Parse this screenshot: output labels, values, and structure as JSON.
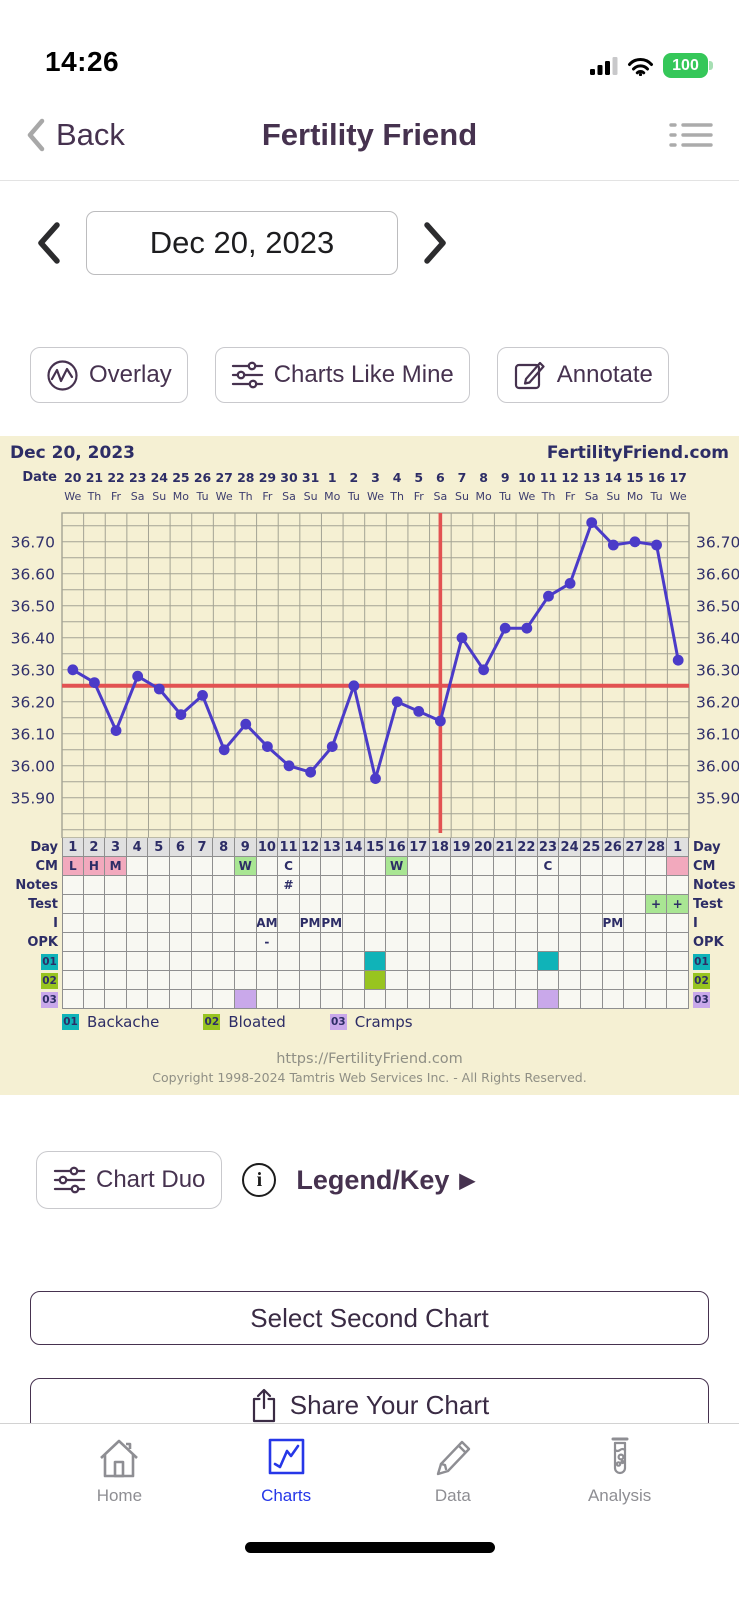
{
  "status_bar": {
    "time": "14:26",
    "battery_percent": "100"
  },
  "nav": {
    "back_label": "Back",
    "title": "Fertility Friend"
  },
  "date_nav": {
    "current_date": "Dec 20, 2023"
  },
  "actions": {
    "overlay": "Overlay",
    "charts_like_mine": "Charts Like Mine",
    "annotate": "Annotate"
  },
  "chart": {
    "header_left": "Dec 20, 2023",
    "header_right": "FertilityFriend.com",
    "date_label": "Date",
    "footer_url": "https://FertilityFriend.com",
    "footer_copyright": "Copyright 1998-2024 Tamtris Web Services Inc. - All Rights Reserved.",
    "colors": {
      "navy": "#2d2d66",
      "grid": "#a3a394",
      "cell_border": "#8f8f8f",
      "plot_bg": "#f5f0d3",
      "cell_bg": "#f8f8f2",
      "day_header_bg": "#e0e0e0",
      "red": "#e25252",
      "line": "#4b3bc8",
      "pink": "#f2a9bd",
      "green": "#a9e693",
      "teal": "#10b3b8",
      "ygreen": "#98c420",
      "lilac": "#c9a8ea"
    }
  },
  "chart_data": {
    "type": "line",
    "title": "Dec 20, 2023",
    "source_label": "FertilityFriend.com",
    "x_dates": [
      "20",
      "21",
      "22",
      "23",
      "24",
      "25",
      "26",
      "27",
      "28",
      "29",
      "30",
      "31",
      "1",
      "2",
      "3",
      "4",
      "5",
      "6",
      "7",
      "8",
      "9",
      "10",
      "11",
      "12",
      "13",
      "14",
      "15",
      "16",
      "17"
    ],
    "x_dow": [
      "We",
      "Th",
      "Fr",
      "Sa",
      "Su",
      "Mo",
      "Tu",
      "We",
      "Th",
      "Fr",
      "Sa",
      "Su",
      "Mo",
      "Tu",
      "We",
      "Th",
      "Fr",
      "Sa",
      "Su",
      "Mo",
      "Tu",
      "We",
      "Th",
      "Fr",
      "Sa",
      "Su",
      "Mo",
      "Tu",
      "We"
    ],
    "cycle_days": [
      "1",
      "2",
      "3",
      "4",
      "5",
      "6",
      "7",
      "8",
      "9",
      "10",
      "11",
      "12",
      "13",
      "14",
      "15",
      "16",
      "17",
      "18",
      "19",
      "20",
      "21",
      "22",
      "23",
      "24",
      "25",
      "26",
      "27",
      "28",
      "1"
    ],
    "temps_c": [
      36.3,
      36.26,
      36.11,
      36.28,
      36.24,
      36.16,
      36.22,
      36.05,
      36.13,
      36.06,
      36.0,
      35.98,
      36.06,
      36.25,
      35.96,
      36.2,
      36.17,
      36.14,
      36.4,
      36.3,
      36.43,
      36.43,
      36.53,
      36.57,
      36.76,
      36.69,
      36.7,
      36.69,
      36.33
    ],
    "yticks": [
      36.7,
      36.6,
      36.5,
      36.4,
      36.3,
      36.2,
      36.1,
      36.0,
      35.9
    ],
    "ylim": [
      35.84,
      36.79
    ],
    "coverline_temp": 36.25,
    "ovulation_line_day": 18,
    "grid": true,
    "rows": [
      {
        "label": "CM",
        "entries": [
          {
            "day": 1,
            "text": "L",
            "bg": "pink"
          },
          {
            "day": 2,
            "text": "H",
            "bg": "pink"
          },
          {
            "day": 3,
            "text": "M",
            "bg": "pink"
          },
          {
            "day": 9,
            "text": "W",
            "bg": "green"
          },
          {
            "day": 11,
            "text": "C"
          },
          {
            "day": 16,
            "text": "W",
            "bg": "green"
          },
          {
            "day": 23,
            "text": "C"
          },
          {
            "day": 29,
            "text": "",
            "bg": "pink"
          }
        ]
      },
      {
        "label": "Notes",
        "entries": [
          {
            "day": 11,
            "text": "#"
          }
        ]
      },
      {
        "label": "Test",
        "entries": [
          {
            "day": 28,
            "text": "+",
            "bg": "green"
          },
          {
            "day": 29,
            "text": "+",
            "bg": "green"
          }
        ]
      },
      {
        "label": "I",
        "entries": [
          {
            "day": 10,
            "text": "AM"
          },
          {
            "day": 12,
            "text": "PM"
          },
          {
            "day": 13,
            "text": "PM"
          },
          {
            "day": 26,
            "text": "PM"
          }
        ]
      },
      {
        "label": "OPK",
        "entries": [
          {
            "day": 10,
            "text": "-"
          }
        ]
      },
      {
        "label": "01",
        "chip": "teal",
        "entries": [
          {
            "day": 15,
            "bg": "teal"
          },
          {
            "day": 23,
            "bg": "teal"
          }
        ]
      },
      {
        "label": "02",
        "chip": "ygreen",
        "entries": [
          {
            "day": 15,
            "bg": "ygreen"
          }
        ]
      },
      {
        "label": "03",
        "chip": "lilac",
        "entries": [
          {
            "day": 9,
            "bg": "lilac"
          },
          {
            "day": 23,
            "bg": "lilac"
          }
        ]
      }
    ],
    "day_row_label": "Day",
    "legend": [
      {
        "code": "01",
        "label": "Backache",
        "color": "teal"
      },
      {
        "code": "02",
        "label": "Bloated",
        "color": "ygreen"
      },
      {
        "code": "03",
        "label": "Cramps",
        "color": "lilac"
      }
    ]
  },
  "secondary": {
    "chart_duo": "Chart Duo",
    "legend_key": "Legend/Key"
  },
  "buttons": {
    "select_second": "Select Second Chart",
    "share": "Share Your Chart"
  },
  "tab_bar": {
    "items": [
      {
        "label": "Home",
        "active": false
      },
      {
        "label": "Charts",
        "active": true
      },
      {
        "label": "Data",
        "active": false
      },
      {
        "label": "Analysis",
        "active": false
      }
    ]
  }
}
